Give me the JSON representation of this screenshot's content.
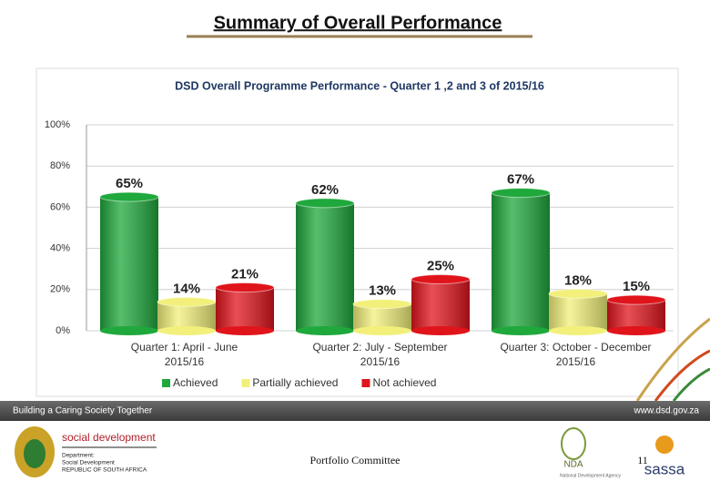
{
  "page_title": "Summary of Overall Performance",
  "footer": {
    "slogan": "Building a Caring Society Together",
    "website": "www.dsd.gov.za",
    "dept_name": "social development",
    "dept_line1": "Department:",
    "dept_line2": "Social Development",
    "dept_line3": "REPUBLIC OF SOUTH AFRICA",
    "center_text": "Portfolio Committee",
    "page_number": "11",
    "nda": "NDA",
    "nda_sub": "National Development Agency",
    "sassa": "sassa"
  },
  "chart_data": {
    "type": "bar",
    "title": "DSD Overall Programme Performance  - Quarter 1 ,2 and 3 of 2015/16",
    "categories": [
      "Quarter 1: April - June 2015/16",
      "Quarter 2: July - September 2015/16",
      "Quarter 3: October - December 2015/16"
    ],
    "series": [
      {
        "name": "Achieved",
        "color": "#1fa83c",
        "values": [
          65,
          62,
          67
        ],
        "value_labels": [
          "65%",
          "62%",
          "67%"
        ]
      },
      {
        "name": "Partially achieved",
        "color": "#f2f07a",
        "values": [
          14,
          13,
          18
        ],
        "value_labels": [
          "14%",
          "13%",
          "18%"
        ]
      },
      {
        "name": "Not achieved",
        "color": "#e0141b",
        "values": [
          21,
          25,
          15
        ],
        "value_labels": [
          "21%",
          "25%",
          "15%"
        ]
      }
    ],
    "ylim": [
      0,
      100
    ],
    "yticks": [
      {
        "value": 0,
        "label": "0%"
      },
      {
        "value": 20,
        "label": "20%"
      },
      {
        "value": 40,
        "label": "40%"
      },
      {
        "value": 60,
        "label": "60%"
      },
      {
        "value": 80,
        "label": "80%"
      },
      {
        "value": 100,
        "label": "100%"
      }
    ],
    "grid": true,
    "legend": "bottom"
  }
}
